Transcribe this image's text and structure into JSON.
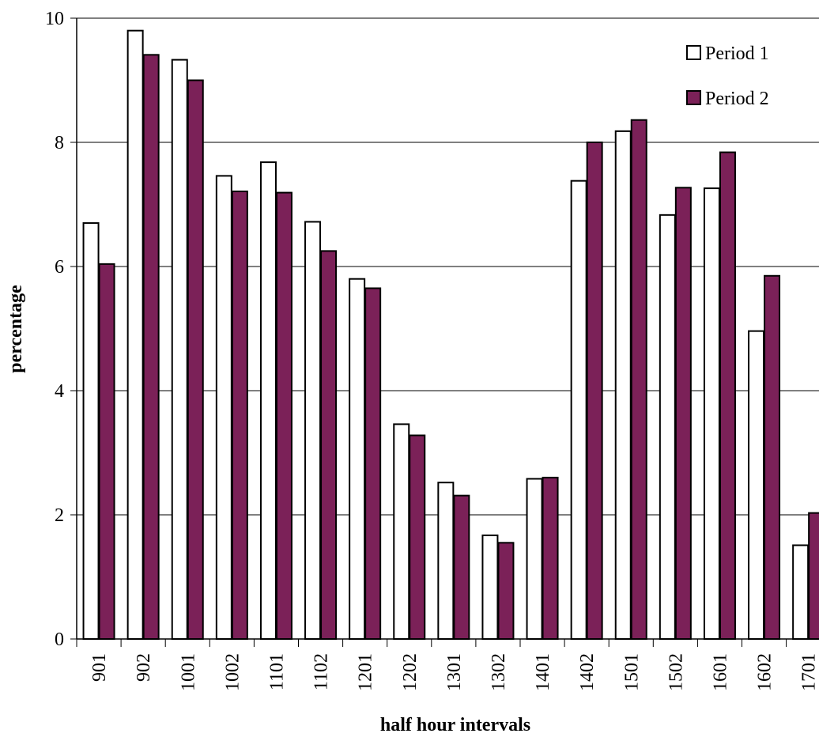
{
  "chart_data": {
    "type": "bar",
    "title": "",
    "xlabel": "half hour intervals",
    "ylabel": "percentage",
    "ylim": [
      0,
      10
    ],
    "yticks": [
      "0",
      "2",
      "4",
      "6",
      "8",
      "10"
    ],
    "grid": true,
    "legend_position": "top-right",
    "categories": [
      "901",
      "902",
      "1001",
      "1002",
      "1101",
      "1102",
      "1201",
      "1202",
      "1301",
      "1302",
      "1401",
      "1402",
      "1501",
      "1502",
      "1601",
      "1602",
      "1701"
    ],
    "series": [
      {
        "name": "Period 1",
        "color": "#ffffff",
        "values": [
          6.7,
          9.8,
          9.33,
          7.46,
          7.68,
          6.72,
          5.8,
          3.46,
          2.52,
          1.67,
          2.58,
          7.38,
          8.18,
          6.83,
          7.26,
          4.96,
          1.51
        ]
      },
      {
        "name": "Period 2",
        "color": "#7b2158",
        "values": [
          6.04,
          9.41,
          9.0,
          7.21,
          7.19,
          6.25,
          5.65,
          3.28,
          2.31,
          1.55,
          2.6,
          8.0,
          8.36,
          7.27,
          7.84,
          5.85,
          2.03
        ]
      }
    ]
  }
}
